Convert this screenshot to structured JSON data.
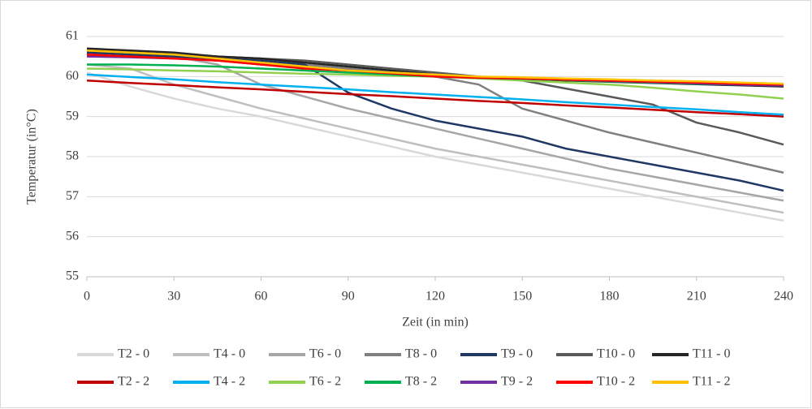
{
  "chart_data": {
    "type": "line",
    "x_label": "Zeit (in min)",
    "y_label": "Temperatur (in°C)",
    "x": [
      0,
      15,
      30,
      45,
      60,
      75,
      90,
      105,
      120,
      135,
      150,
      165,
      180,
      195,
      210,
      225,
      240
    ],
    "xlim": [
      0,
      240
    ],
    "xticks": [
      0,
      30,
      60,
      90,
      120,
      150,
      180,
      210,
      240
    ],
    "ylim": [
      55,
      61
    ],
    "yticks": [
      55,
      56,
      57,
      58,
      59,
      60,
      61
    ],
    "grid": true,
    "series": [
      {
        "name": "T2 - 0",
        "color": "#d9d9d9",
        "values": [
          60.1,
          59.75,
          59.45,
          59.2,
          59.0,
          58.75,
          58.5,
          58.25,
          58.0,
          57.8,
          57.6,
          57.4,
          57.2,
          57.0,
          56.8,
          56.6,
          56.4
        ]
      },
      {
        "name": "T4 - 0",
        "color": "#bfbfbf",
        "values": [
          60.3,
          60.2,
          59.8,
          59.5,
          59.2,
          58.95,
          58.7,
          58.45,
          58.2,
          58.0,
          57.8,
          57.6,
          57.4,
          57.2,
          57.0,
          56.8,
          56.6
        ]
      },
      {
        "name": "T6 - 0",
        "color": "#a6a6a6",
        "values": [
          60.5,
          60.5,
          60.5,
          60.3,
          59.8,
          59.5,
          59.2,
          58.95,
          58.7,
          58.45,
          58.2,
          57.95,
          57.7,
          57.5,
          57.3,
          57.1,
          56.9
        ]
      },
      {
        "name": "T8 - 0",
        "color": "#7f7f7f",
        "values": [
          60.6,
          60.55,
          60.5,
          60.45,
          60.4,
          60.3,
          60.2,
          60.1,
          60.0,
          59.8,
          59.2,
          58.9,
          58.6,
          58.35,
          58.1,
          57.85,
          57.6
        ]
      },
      {
        "name": "T9 - 0",
        "color": "#1f3864",
        "values": [
          60.6,
          60.55,
          60.5,
          60.45,
          60.4,
          60.3,
          59.6,
          59.2,
          58.9,
          58.7,
          58.5,
          58.2,
          58.0,
          57.8,
          57.6,
          57.4,
          57.15
        ]
      },
      {
        "name": "T10 - 0",
        "color": "#595959",
        "values": [
          60.65,
          60.6,
          60.55,
          60.5,
          60.45,
          60.4,
          60.3,
          60.2,
          60.1,
          60.0,
          59.9,
          59.7,
          59.5,
          59.3,
          58.85,
          58.6,
          58.3
        ]
      },
      {
        "name": "T11 - 0",
        "color": "#262626",
        "values": [
          60.7,
          60.65,
          60.6,
          60.5,
          60.45,
          60.35,
          60.25,
          60.15,
          60.05,
          59.98,
          59.93,
          59.9,
          59.87,
          59.84,
          59.81,
          59.78,
          59.75
        ]
      },
      {
        "name": "T2 - 2",
        "color": "#c00000",
        "values": [
          59.9,
          59.84,
          59.79,
          59.73,
          59.68,
          59.62,
          59.56,
          59.51,
          59.45,
          59.39,
          59.34,
          59.28,
          59.23,
          59.17,
          59.11,
          59.06,
          59.0
        ]
      },
      {
        "name": "T4 - 2",
        "color": "#00b0f0",
        "values": [
          60.05,
          59.99,
          59.93,
          59.86,
          59.8,
          59.74,
          59.68,
          59.61,
          59.55,
          59.49,
          59.43,
          59.36,
          59.3,
          59.24,
          59.18,
          59.11,
          59.05
        ]
      },
      {
        "name": "T6 - 2",
        "color": "#92d050",
        "values": [
          60.2,
          60.18,
          60.15,
          60.13,
          60.1,
          60.07,
          60.05,
          60.02,
          60.0,
          59.95,
          59.9,
          59.85,
          59.8,
          59.72,
          59.63,
          59.55,
          59.45
        ]
      },
      {
        "name": "T8 - 2",
        "color": "#00b050",
        "values": [
          60.3,
          60.3,
          60.28,
          60.25,
          60.2,
          60.15,
          60.1,
          60.05,
          60.0,
          59.97,
          59.94,
          59.91,
          59.88,
          59.85,
          59.82,
          59.8,
          59.78
        ]
      },
      {
        "name": "T9 - 2",
        "color": "#7030a0",
        "values": [
          60.5,
          60.48,
          60.45,
          60.4,
          60.3,
          60.22,
          60.15,
          60.08,
          60.02,
          59.98,
          59.95,
          59.92,
          59.89,
          59.86,
          59.83,
          59.8,
          59.77
        ]
      },
      {
        "name": "T10 - 2",
        "color": "#ff0000",
        "values": [
          60.55,
          60.5,
          60.45,
          60.4,
          60.3,
          60.2,
          60.15,
          60.08,
          60.0,
          59.97,
          59.95,
          59.92,
          59.9,
          59.87,
          59.85,
          59.82,
          59.8
        ]
      },
      {
        "name": "T11 - 2",
        "color": "#ffc000",
        "values": [
          60.65,
          60.6,
          60.55,
          60.45,
          60.35,
          60.25,
          60.15,
          60.1,
          60.05,
          60.0,
          59.98,
          59.95,
          59.93,
          59.9,
          59.88,
          59.85,
          59.82
        ]
      }
    ]
  }
}
